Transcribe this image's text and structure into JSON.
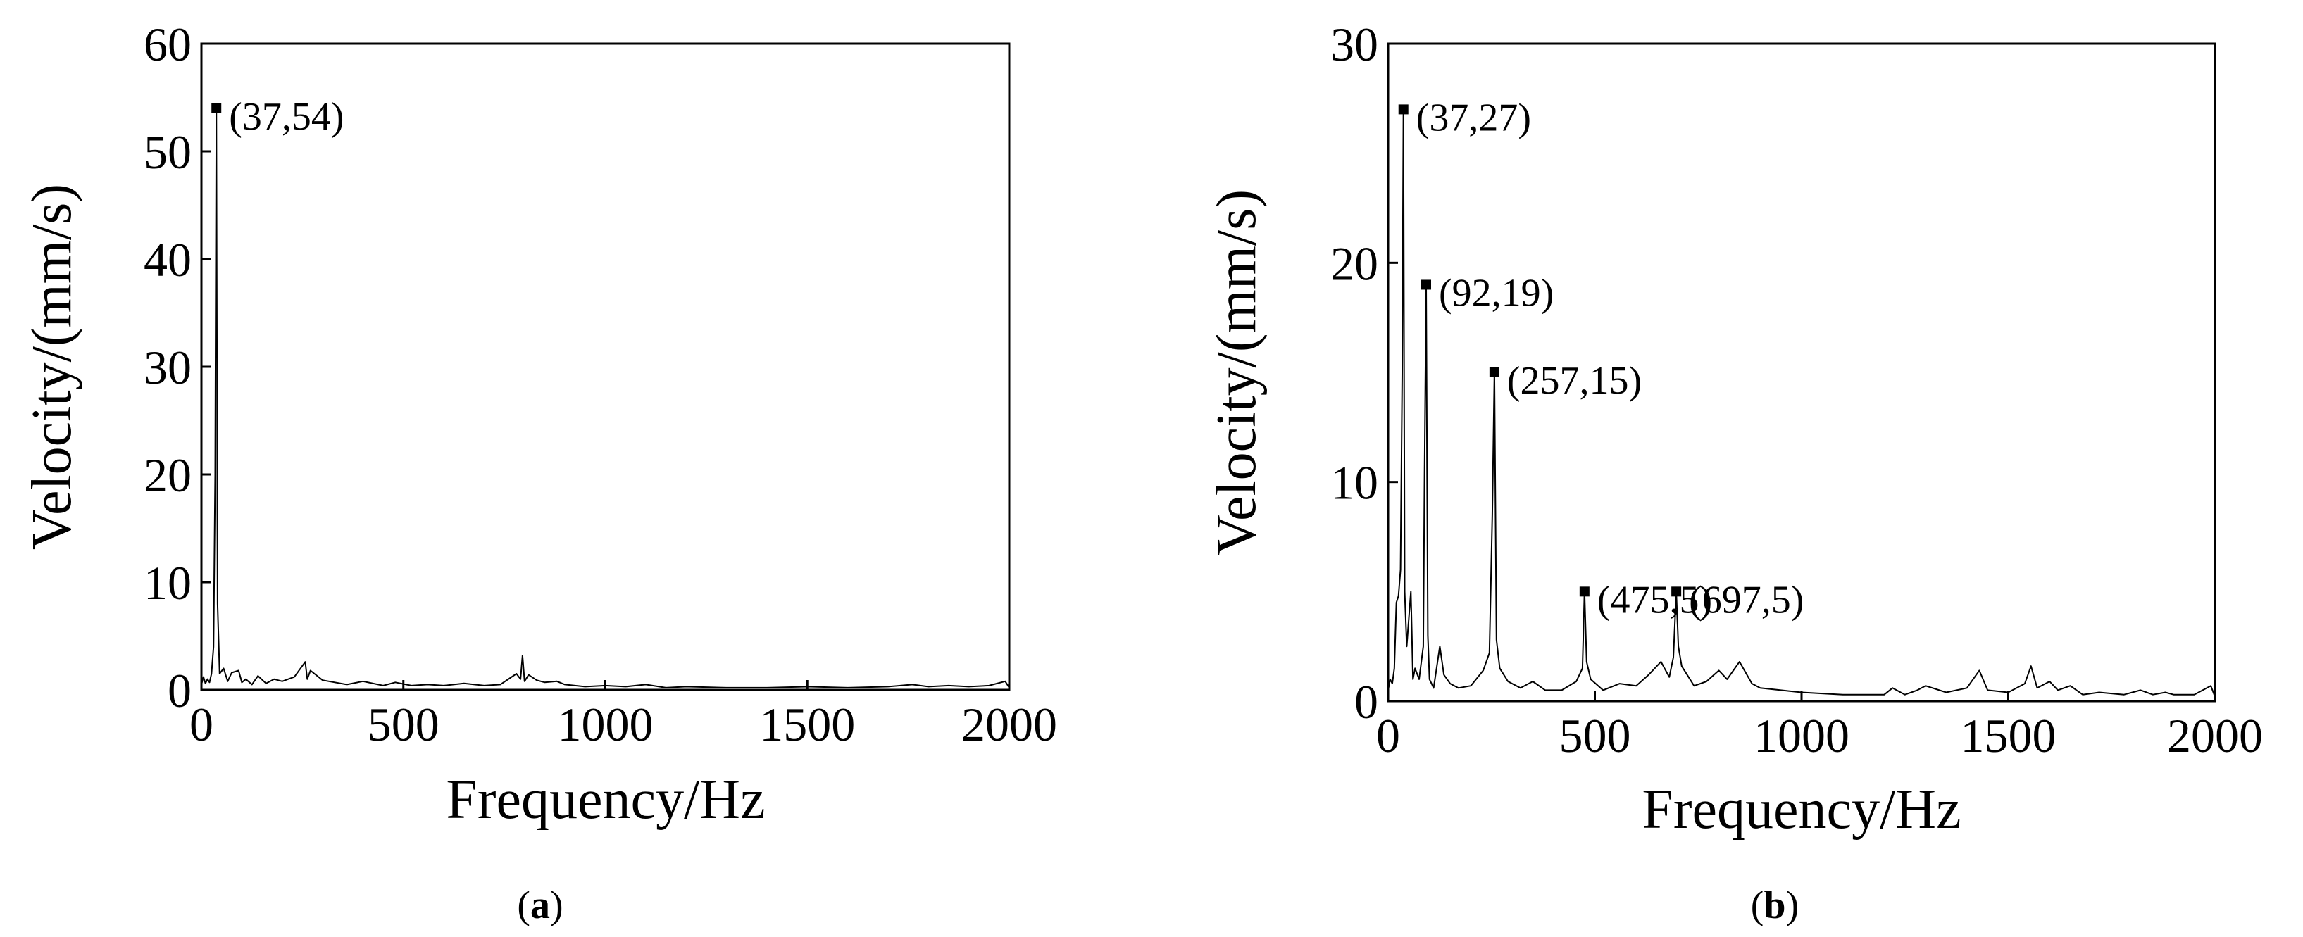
{
  "chart_data": [
    {
      "type": "line",
      "panel_label": "a",
      "xlabel": "Frequency/Hz",
      "ylabel": "Velocity/(mm/s)",
      "xlim": [
        0,
        2000
      ],
      "ylim": [
        0,
        60
      ],
      "xticks": [
        0,
        500,
        1000,
        1500,
        2000
      ],
      "yticks": [
        0,
        10,
        20,
        30,
        40,
        50,
        60
      ],
      "grid": false,
      "peaks": [
        {
          "x": 37,
          "y": 54,
          "label": "(37,54)"
        }
      ],
      "series": [
        {
          "x": [
            0,
            5,
            10,
            15,
            20,
            25,
            30,
            34,
            37,
            40,
            45,
            55,
            65,
            75,
            92,
            100,
            110,
            125,
            140,
            160,
            180,
            200,
            230,
            257,
            262,
            270,
            290,
            300,
            330,
            360,
            400,
            450,
            480,
            520,
            560,
            600,
            650,
            700,
            740,
            780,
            790,
            795,
            800,
            810,
            830,
            850,
            880,
            900,
            950,
            1000,
            1050,
            1100,
            1150,
            1200,
            1300,
            1400,
            1500,
            1600,
            1700,
            1760,
            1800,
            1850,
            1900,
            1950,
            1990,
            2000
          ],
          "y": [
            0.5,
            1.2,
            0.6,
            1.0,
            0.7,
            1.5,
            4.0,
            20.0,
            54.0,
            8.0,
            1.5,
            2.0,
            0.8,
            1.6,
            1.8,
            0.7,
            1.0,
            0.5,
            1.3,
            0.6,
            1.0,
            0.8,
            1.2,
            2.6,
            1.0,
            1.8,
            1.2,
            0.9,
            0.7,
            0.5,
            0.8,
            0.4,
            0.7,
            0.4,
            0.5,
            0.4,
            0.6,
            0.4,
            0.5,
            1.5,
            1.0,
            3.2,
            0.8,
            1.4,
            0.9,
            0.7,
            0.8,
            0.5,
            0.3,
            0.4,
            0.3,
            0.5,
            0.2,
            0.3,
            0.2,
            0.2,
            0.3,
            0.2,
            0.3,
            0.5,
            0.3,
            0.4,
            0.3,
            0.4,
            0.8,
            0.2
          ]
        }
      ]
    },
    {
      "type": "line",
      "panel_label": "b",
      "xlabel": "Frequency/Hz",
      "ylabel": "Velocity/(mm/s)",
      "xlim": [
        0,
        2000
      ],
      "ylim": [
        0,
        30
      ],
      "xticks": [
        0,
        500,
        1000,
        1500,
        2000
      ],
      "yticks": [
        0,
        10,
        20,
        30
      ],
      "grid": false,
      "peaks": [
        {
          "x": 37,
          "y": 27,
          "label": "(37,27)"
        },
        {
          "x": 92,
          "y": 19,
          "label": "(92,19)"
        },
        {
          "x": 257,
          "y": 15,
          "label": "(257,15)"
        },
        {
          "x": 475,
          "y": 5,
          "label": "(475,5)"
        },
        {
          "x": 697,
          "y": 5,
          "label": "(697,5)"
        }
      ],
      "series": [
        {
          "x": [
            0,
            5,
            10,
            15,
            20,
            25,
            30,
            34,
            37,
            40,
            45,
            55,
            60,
            65,
            75,
            85,
            88,
            92,
            96,
            100,
            110,
            125,
            135,
            150,
            170,
            200,
            230,
            245,
            252,
            257,
            262,
            270,
            290,
            320,
            350,
            380,
            420,
            455,
            470,
            475,
            480,
            490,
            520,
            560,
            600,
            630,
            660,
            680,
            690,
            697,
            702,
            710,
            740,
            770,
            800,
            820,
            850,
            880,
            900,
            950,
            1000,
            1100,
            1200,
            1220,
            1250,
            1280,
            1300,
            1350,
            1400,
            1430,
            1450,
            1500,
            1540,
            1555,
            1570,
            1600,
            1620,
            1650,
            1680,
            1720,
            1780,
            1820,
            1850,
            1880,
            1900,
            1950,
            1990,
            2000
          ],
          "y": [
            0.5,
            1.0,
            0.8,
            1.5,
            4.5,
            4.8,
            6.0,
            15.0,
            27.0,
            5.0,
            2.5,
            5.0,
            1.0,
            1.5,
            1.0,
            2.5,
            10.5,
            19.0,
            3.0,
            1.0,
            0.6,
            2.5,
            1.2,
            0.8,
            0.6,
            0.7,
            1.4,
            2.2,
            8.5,
            15.0,
            2.8,
            1.5,
            0.9,
            0.6,
            0.9,
            0.5,
            0.5,
            0.9,
            1.5,
            5.0,
            1.8,
            1.0,
            0.5,
            0.8,
            0.7,
            1.2,
            1.8,
            1.1,
            2.0,
            5.0,
            2.5,
            1.6,
            0.7,
            0.9,
            1.4,
            1.0,
            1.8,
            0.8,
            0.6,
            0.5,
            0.4,
            0.3,
            0.3,
            0.6,
            0.3,
            0.5,
            0.7,
            0.4,
            0.6,
            1.4,
            0.5,
            0.4,
            0.8,
            1.6,
            0.6,
            0.9,
            0.5,
            0.7,
            0.3,
            0.4,
            0.3,
            0.5,
            0.3,
            0.4,
            0.3,
            0.3,
            0.7,
            0.2
          ]
        }
      ]
    }
  ]
}
